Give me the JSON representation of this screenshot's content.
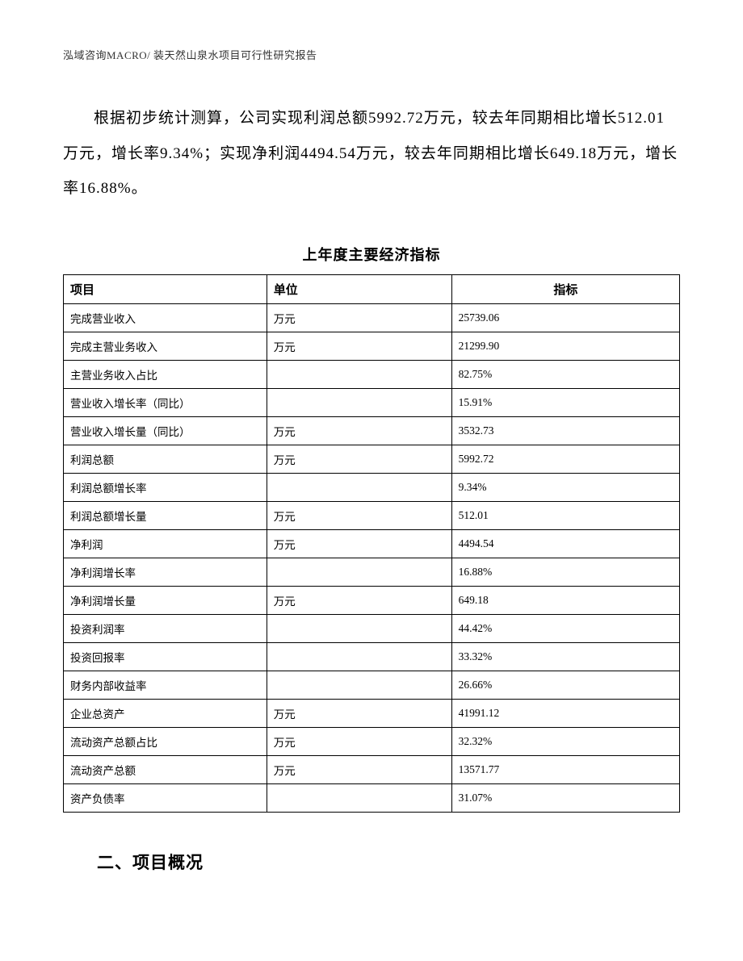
{
  "header": "泓域咨询MACRO/   装天然山泉水项目可行性研究报告",
  "paragraph": "根据初步统计测算，公司实现利润总额5992.72万元，较去年同期相比增长512.01万元，增长率9.34%；实现净利润4494.54万元，较去年同期相比增长649.18万元，增长率16.88%。",
  "table": {
    "title": "上年度主要经济指标",
    "columns": [
      "项目",
      "单位",
      "指标"
    ],
    "rows": [
      [
        "完成营业收入",
        "万元",
        "25739.06"
      ],
      [
        "完成主营业务收入",
        "万元",
        "21299.90"
      ],
      [
        "主营业务收入占比",
        "",
        "82.75%"
      ],
      [
        "营业收入增长率（同比）",
        "",
        "15.91%"
      ],
      [
        "营业收入增长量（同比）",
        "万元",
        "3532.73"
      ],
      [
        "利润总额",
        "万元",
        "5992.72"
      ],
      [
        "利润总额增长率",
        "",
        "9.34%"
      ],
      [
        "利润总额增长量",
        "万元",
        "512.01"
      ],
      [
        "净利润",
        "万元",
        "4494.54"
      ],
      [
        "净利润增长率",
        "",
        "16.88%"
      ],
      [
        "净利润增长量",
        "万元",
        "649.18"
      ],
      [
        "投资利润率",
        "",
        "44.42%"
      ],
      [
        "投资回报率",
        "",
        "33.32%"
      ],
      [
        "财务内部收益率",
        "",
        "26.66%"
      ],
      [
        "企业总资产",
        "万元",
        "41991.12"
      ],
      [
        "流动资产总额占比",
        "万元",
        "32.32%"
      ],
      [
        "流动资产总额",
        "万元",
        "13571.77"
      ],
      [
        "资产负债率",
        "",
        "31.07%"
      ]
    ]
  },
  "section_heading": "二、项目概况"
}
